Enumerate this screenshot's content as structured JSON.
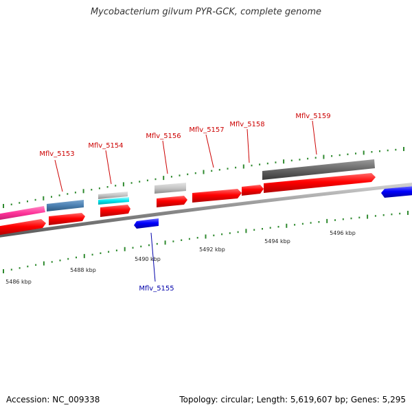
{
  "title": "Mycobacterium gilvum PYR-GCK, complete genome",
  "footer": {
    "accession": "Accession: NC_009338",
    "topology": "Topology: circular; Length: 5,619,607 bp; Genes: 5,295"
  },
  "tick_labels": [
    "5486 kbp",
    "5488 kbp",
    "5490 kbp",
    "5492 kbp",
    "5494 kbp",
    "5496 kbp"
  ],
  "gene_labels": [
    {
      "name": "Mflv_5153",
      "color": "#cc0000"
    },
    {
      "name": "Mflv_5154",
      "color": "#cc0000"
    },
    {
      "name": "Mflv_5156",
      "color": "#cc0000"
    },
    {
      "name": "Mflv_5157",
      "color": "#cc0000"
    },
    {
      "name": "Mflv_5158",
      "color": "#cc0000"
    },
    {
      "name": "Mflv_5159",
      "color": "#cc0000"
    },
    {
      "name": "Mflv_5155",
      "color": "#0000aa"
    }
  ],
  "colors": {
    "cds_forward": "#ff0000",
    "cds_reverse": "#0000ff",
    "backbone": "#808080",
    "ticks": "#2f8a2f",
    "pink": "#ff3399",
    "steelblue": "#4a7fb0",
    "cyan": "#00e5ee",
    "lightgray": "#bdbdbd",
    "darkgray": "#606060"
  }
}
